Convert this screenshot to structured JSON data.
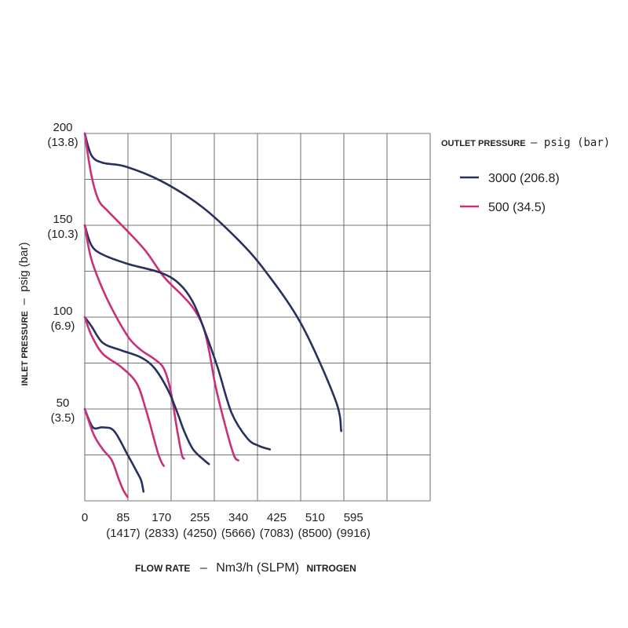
{
  "chart_data": {
    "type": "line",
    "xlabel": {
      "prefix": "FLOW RATE",
      "dash": "–",
      "unit": "Nm3/h (SLPM)",
      "suffix": "NITROGEN"
    },
    "ylabel": {
      "prefix": "INLET PRESSURE",
      "dash": "–",
      "unit": "psig (bar)"
    },
    "legend": {
      "title_prefix": "OUTLET PRESSURE",
      "title_dash": "–",
      "title_unit": "psig (bar)",
      "placement": "right",
      "entries": [
        {
          "label": "3000 (206.8)",
          "color": "#27305f"
        },
        {
          "label": "500 (34.5)",
          "color": "#c8307a"
        }
      ]
    },
    "xlim": [
      0,
      765
    ],
    "ylim": [
      0,
      200
    ],
    "x_ticks": [
      {
        "value": 0,
        "label": "0",
        "sub": ""
      },
      {
        "value": 85,
        "label": "85",
        "sub": "(1417)"
      },
      {
        "value": 170,
        "label": "170",
        "sub": "(2833)"
      },
      {
        "value": 255,
        "label": "255",
        "sub": "(4250)"
      },
      {
        "value": 340,
        "label": "340",
        "sub": "(5666)"
      },
      {
        "value": 425,
        "label": "425",
        "sub": "(7083)"
      },
      {
        "value": 510,
        "label": "510",
        "sub": "(8500)"
      },
      {
        "value": 595,
        "label": "595",
        "sub": "(9916)"
      }
    ],
    "y_ticks": [
      {
        "value": 200,
        "label": "200",
        "sub": "(13.8)"
      },
      {
        "value": 150,
        "label": "150",
        "sub": "(10.3)"
      },
      {
        "value": 100,
        "label": "100",
        "sub": "(6.9)"
      },
      {
        "value": 50,
        "label": "50",
        "sub": "(3.5)"
      }
    ],
    "grid": true,
    "series": [
      {
        "group": "200",
        "outlet_index": 0,
        "color": "#27305f",
        "points": [
          [
            0,
            200
          ],
          [
            15,
            188
          ],
          [
            40,
            184
          ],
          [
            90,
            182
          ],
          [
            170,
            174
          ],
          [
            260,
            160
          ],
          [
            340,
            142
          ],
          [
            400,
            125
          ],
          [
            480,
            96
          ],
          [
            555,
            55
          ],
          [
            568,
            38
          ]
        ]
      },
      {
        "group": "200",
        "outlet_index": 1,
        "color": "#c8307a",
        "points": [
          [
            0,
            200
          ],
          [
            14,
            178
          ],
          [
            30,
            164
          ],
          [
            50,
            158
          ],
          [
            90,
            148
          ],
          [
            135,
            136
          ],
          [
            175,
            122
          ],
          [
            215,
            112
          ],
          [
            240,
            105
          ],
          [
            262,
            95
          ],
          [
            275,
            82
          ],
          [
            290,
            62
          ],
          [
            310,
            42
          ],
          [
            330,
            25
          ],
          [
            340,
            22
          ]
        ]
      },
      {
        "group": "150",
        "outlet_index": 0,
        "color": "#27305f",
        "points": [
          [
            0,
            150
          ],
          [
            15,
            139
          ],
          [
            40,
            134
          ],
          [
            95,
            129
          ],
          [
            170,
            124
          ],
          [
            210,
            118
          ],
          [
            240,
            108
          ],
          [
            265,
            93
          ],
          [
            295,
            72
          ],
          [
            325,
            48
          ],
          [
            360,
            34
          ],
          [
            385,
            30
          ],
          [
            410,
            28
          ]
        ]
      },
      {
        "group": "150",
        "outlet_index": 1,
        "color": "#c8307a",
        "points": [
          [
            0,
            150
          ],
          [
            14,
            132
          ],
          [
            40,
            115
          ],
          [
            70,
            100
          ],
          [
            100,
            88
          ],
          [
            125,
            82
          ],
          [
            155,
            77
          ],
          [
            175,
            72
          ],
          [
            190,
            60
          ],
          [
            205,
            38
          ],
          [
            215,
            25
          ],
          [
            220,
            23
          ]
        ]
      },
      {
        "group": "100",
        "outlet_index": 0,
        "color": "#27305f",
        "points": [
          [
            0,
            100
          ],
          [
            15,
            95
          ],
          [
            40,
            86
          ],
          [
            80,
            82
          ],
          [
            125,
            78
          ],
          [
            155,
            72
          ],
          [
            185,
            60
          ],
          [
            205,
            48
          ],
          [
            220,
            38
          ],
          [
            240,
            28
          ],
          [
            265,
            22
          ],
          [
            275,
            20
          ]
        ]
      },
      {
        "group": "100",
        "outlet_index": 1,
        "color": "#c8307a",
        "points": [
          [
            0,
            100
          ],
          [
            15,
            90
          ],
          [
            40,
            80
          ],
          [
            80,
            73
          ],
          [
            115,
            64
          ],
          [
            135,
            50
          ],
          [
            152,
            35
          ],
          [
            162,
            26
          ],
          [
            170,
            21
          ],
          [
            175,
            19
          ]
        ]
      },
      {
        "group": "50",
        "outlet_index": 0,
        "color": "#27305f",
        "points": [
          [
            0,
            50
          ],
          [
            18,
            40
          ],
          [
            40,
            40
          ],
          [
            65,
            38
          ],
          [
            95,
            25
          ],
          [
            115,
            16
          ],
          [
            125,
            11
          ],
          [
            130,
            5
          ]
        ]
      },
      {
        "group": "50",
        "outlet_index": 1,
        "color": "#c8307a",
        "points": [
          [
            0,
            50
          ],
          [
            20,
            36
          ],
          [
            40,
            28
          ],
          [
            60,
            22
          ],
          [
            75,
            12
          ],
          [
            85,
            6
          ],
          [
            95,
            2
          ]
        ]
      }
    ]
  }
}
